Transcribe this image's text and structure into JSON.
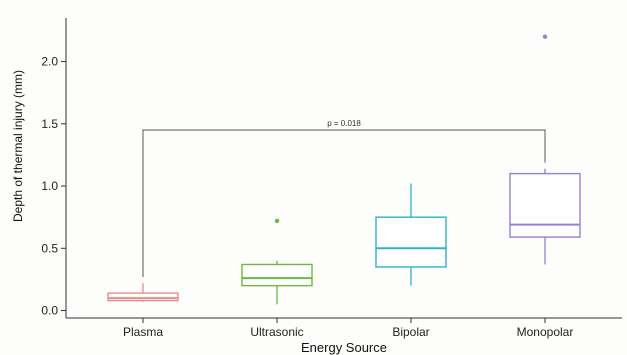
{
  "chart_data": {
    "type": "boxplot",
    "title": "",
    "xlabel": "Energy Source",
    "ylabel": "Depth of thermal injury (mm)",
    "ylim": [
      -0.06,
      2.35
    ],
    "y_ticks": [
      0.0,
      0.5,
      1.0,
      1.5,
      2.0
    ],
    "y_tick_labels": [
      "0.0",
      "0.5",
      "1.0",
      "1.5",
      "2.0"
    ],
    "grid": false,
    "legend": "none",
    "categories": [
      "Plasma",
      "Ultrasonic",
      "Bipolar",
      "Monopolar"
    ],
    "colors": [
      "#f08a8a",
      "#6cb83c",
      "#2fb3c9",
      "#9a7fd1"
    ],
    "boxes": [
      {
        "category": "Plasma",
        "whisker_low": 0.07,
        "q1": 0.08,
        "median": 0.1,
        "q3": 0.14,
        "whisker_high": 0.22,
        "outliers": []
      },
      {
        "category": "Ultrasonic",
        "whisker_low": 0.05,
        "q1": 0.2,
        "median": 0.26,
        "q3": 0.37,
        "whisker_high": 0.4,
        "outliers": [
          0.72
        ]
      },
      {
        "category": "Bipolar",
        "whisker_low": 0.2,
        "q1": 0.35,
        "median": 0.5,
        "q3": 0.75,
        "whisker_high": 1.02,
        "outliers": []
      },
      {
        "category": "Monopolar",
        "whisker_low": 0.37,
        "q1": 0.59,
        "median": 0.69,
        "q3": 1.1,
        "whisker_high": 1.14,
        "outliers": [
          2.2
        ]
      }
    ],
    "annotation": {
      "text": "p = 0.018",
      "from": "Plasma",
      "to": "Monopolar",
      "y": 1.45
    }
  }
}
